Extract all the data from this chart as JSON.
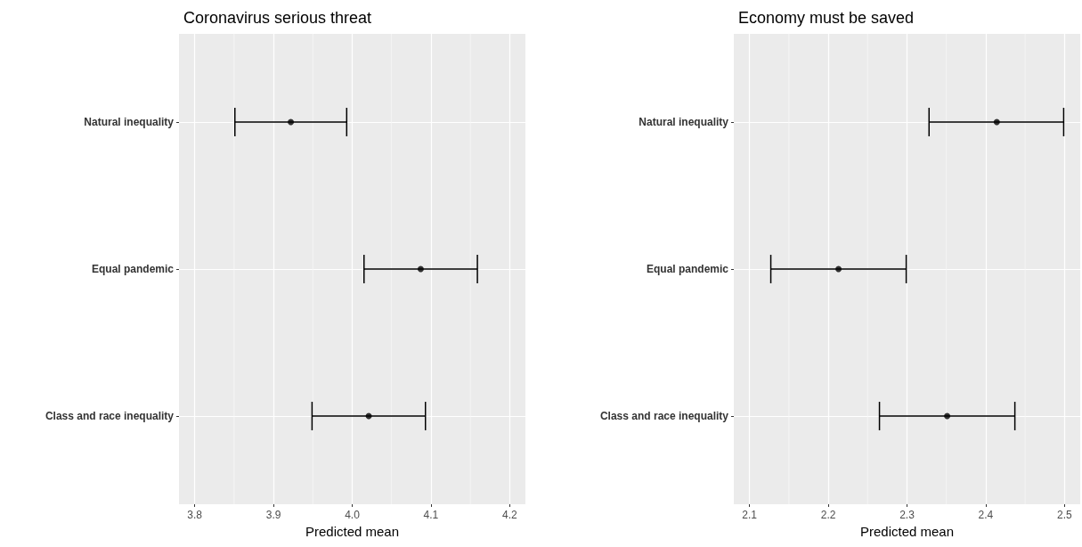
{
  "chart_data": [
    {
      "type": "scatter",
      "title": "Coronavirus serious threat",
      "xlabel": "Predicted mean",
      "orientation": "horizontal",
      "categories": [
        "Natural inequality",
        "Equal pandemic",
        "Class and race inequality"
      ],
      "series": [
        {
          "color": "#000000",
          "values": [
            3.922,
            4.087,
            4.021
          ],
          "errors": [
            [
              3.851,
              3.993
            ],
            [
              4.015,
              4.159
            ],
            [
              3.949,
              4.093
            ]
          ]
        }
      ],
      "xlim": [
        3.78,
        4.22
      ],
      "xticks": [
        3.8,
        3.9,
        {
          "value": 4.0,
          "label": "4.0"
        },
        4.1,
        4.2
      ],
      "grid": true,
      "marker": "circle"
    },
    {
      "type": "scatter",
      "title": "Economy must be saved",
      "xlabel": "Predicted mean",
      "orientation": "horizontal",
      "categories": [
        "Natural inequality",
        "Equal pandemic",
        "Class and race inequality"
      ],
      "series": [
        {
          "color": "#000000",
          "values": [
            2.414,
            2.213,
            2.351
          ],
          "errors": [
            [
              2.328,
              2.499
            ],
            [
              2.127,
              2.299
            ],
            [
              2.265,
              2.437
            ]
          ]
        }
      ],
      "xlim": [
        2.08,
        2.52
      ],
      "xticks": [
        2.1,
        2.2,
        2.3,
        2.4,
        2.5
      ],
      "grid": true,
      "marker": "circle"
    }
  ]
}
